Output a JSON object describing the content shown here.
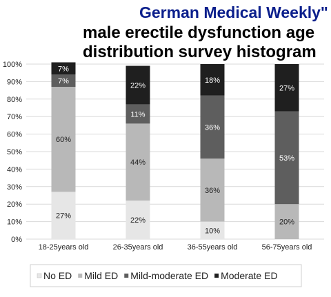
{
  "chart_data": {
    "type": "bar",
    "stacked": true,
    "normalized": true,
    "publication": "German Medical Weekly\"",
    "title_lines": [
      "male erectile dysfunction age",
      "distribution survey histogram"
    ],
    "categories": [
      "18-25years old",
      "26-35years old",
      "36-55years old",
      "56-75years old"
    ],
    "series": [
      {
        "name": "No ED",
        "color": "#e6e6e6",
        "values": [
          27,
          22,
          10,
          0
        ],
        "labels": [
          "27%",
          "22%",
          "10%",
          ""
        ]
      },
      {
        "name": "Mild ED",
        "color": "#b8b8b8",
        "values": [
          60,
          44,
          36,
          20
        ],
        "labels": [
          "60%",
          "44%",
          "36%",
          "20%"
        ]
      },
      {
        "name": "Mild-moderate ED",
        "color": "#5e5e5e",
        "values": [
          7,
          11,
          36,
          53
        ],
        "labels": [
          "7%",
          "11%",
          "36%",
          "53%"
        ]
      },
      {
        "name": "Moderate ED",
        "color": "#1f1f1f",
        "values": [
          7,
          22,
          18,
          27
        ],
        "labels": [
          "7%",
          "22%",
          "18%",
          "27%"
        ]
      }
    ],
    "y_ticks": [
      "0%",
      "10%",
      "20%",
      "30%",
      "40%",
      "50%",
      "60%",
      "70%",
      "80%",
      "90%",
      "100%"
    ],
    "ylim": [
      0,
      100
    ],
    "grid": true,
    "legend_position": "bottom"
  }
}
